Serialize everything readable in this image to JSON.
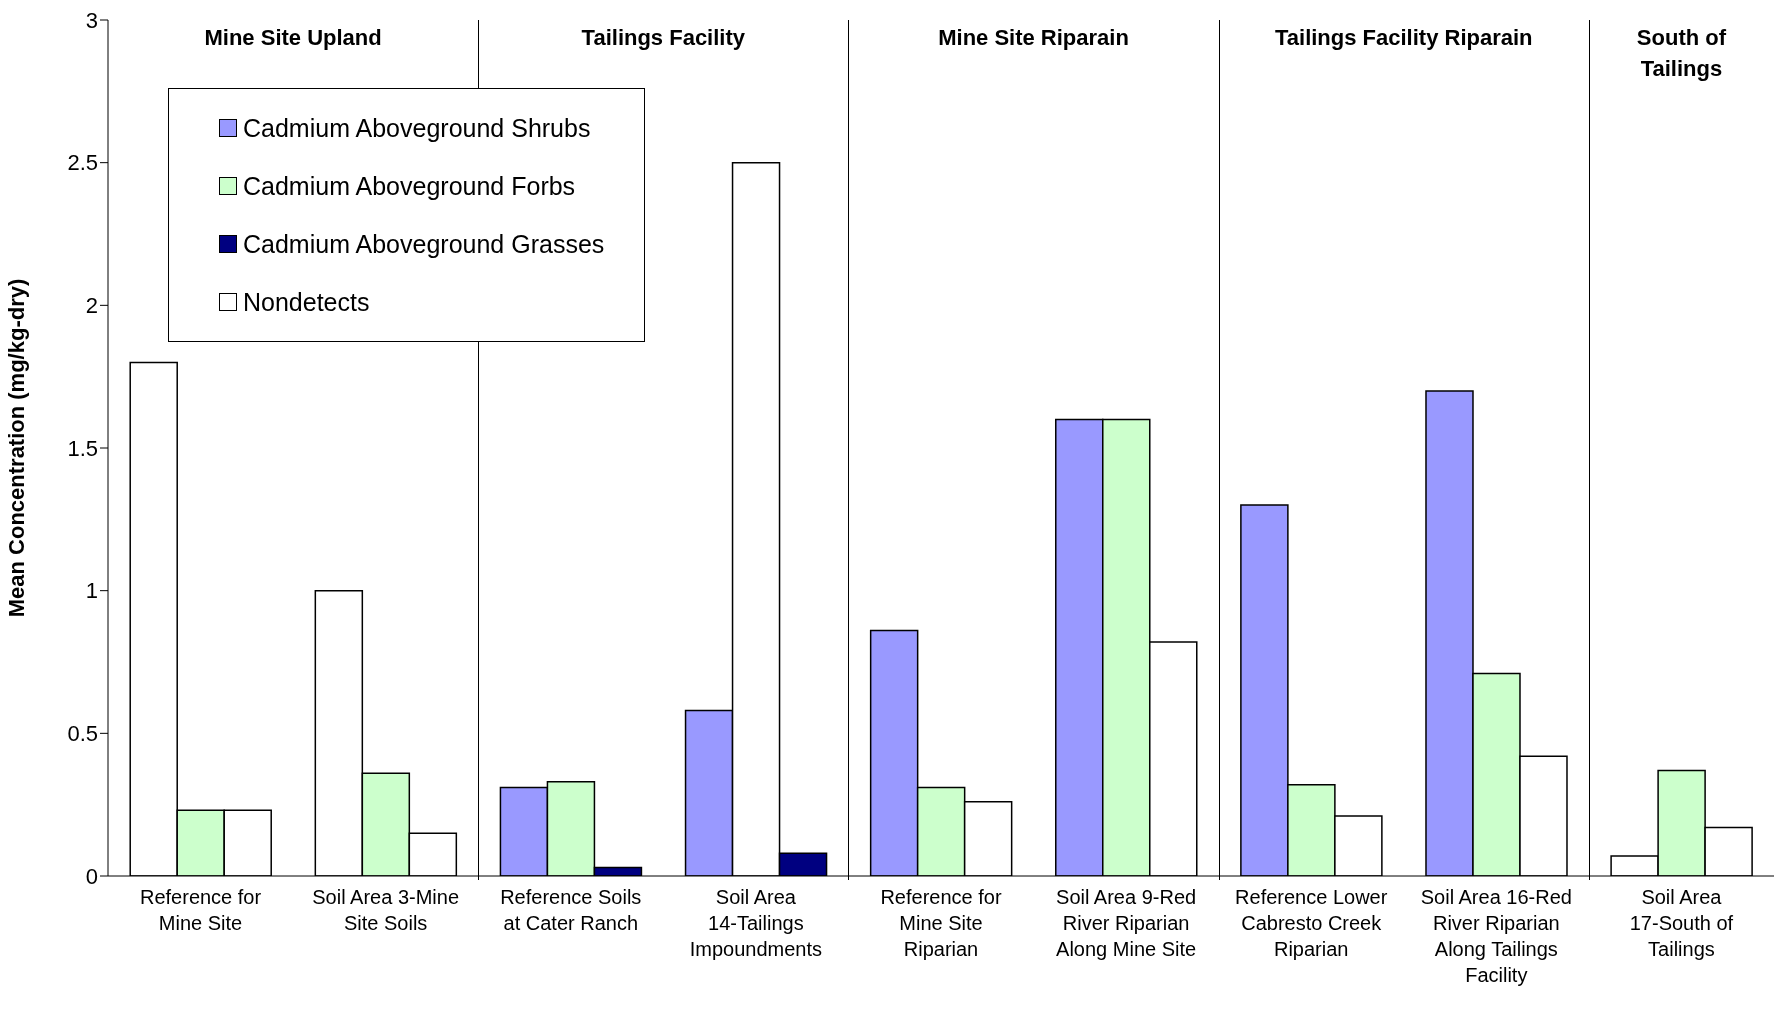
{
  "chart_data": {
    "type": "bar",
    "ylabel": "Mean Concentration (mg/kg-dry)",
    "categories": [
      "Reference for Mine Site",
      "Soil Area 3-Mine Site Soils",
      "Reference Soils at Cater Ranch",
      "Soil Area 14-Tailings Impoundments",
      "Reference for Mine Site Riparian",
      "Soil Area 9-Red River Riparian Along Mine Site",
      "Reference Lower Cabresto Creek Riparian",
      "Soil Area 16-Red River Riparian Along Tailings Facility",
      "Soil Area 17-South of Tailings"
    ],
    "series": [
      {
        "name": "Cadmium Aboveground Shrubs",
        "color": "#9999ff",
        "values": [
          1.8,
          1.0,
          0.31,
          0.58,
          0.86,
          1.6,
          1.3,
          1.7,
          0.07
        ],
        "colors": [
          "#ffffff",
          "#ffffff",
          "#9999ff",
          "#9999ff",
          "#9999ff",
          "#9999ff",
          "#9999ff",
          "#9999ff",
          "#ffffff"
        ]
      },
      {
        "name": "Cadmium Aboveground Forbs",
        "color": "#ccffcc",
        "values": [
          0.23,
          0.36,
          0.33,
          2.5,
          0.31,
          1.6,
          0.32,
          0.71,
          0.37
        ],
        "colors": [
          "#ccffcc",
          "#ccffcc",
          "#ccffcc",
          "#ffffff",
          "#ccffcc",
          "#ccffcc",
          "#ccffcc",
          "#ccffcc",
          "#ccffcc"
        ]
      },
      {
        "name": "Cadmium Aboveground Grasses",
        "color": "#000080",
        "values": [
          0.23,
          0.15,
          0.03,
          0.08,
          0.26,
          0.82,
          0.21,
          0.42,
          0.17
        ],
        "colors": [
          "#ffffff",
          "#ffffff",
          "#000080",
          "#000080",
          "#ffffff",
          "#ffffff",
          "#ffffff",
          "#ffffff",
          "#ffffff"
        ]
      },
      {
        "name": "Nondetects",
        "color": "#ffffff",
        "values": [
          null,
          null,
          null,
          null,
          null,
          null,
          null,
          null,
          null
        ]
      }
    ],
    "ylim": [
      0,
      3
    ],
    "yticks": [
      0,
      0.5,
      1,
      1.5,
      2,
      2.5,
      3
    ],
    "legend": "top left",
    "annotations": [
      "Mine Site Upland",
      "Tailings Facility",
      "Mine Site Riparain",
      "Tailings Facility Riparain",
      "South of Tailings"
    ]
  }
}
